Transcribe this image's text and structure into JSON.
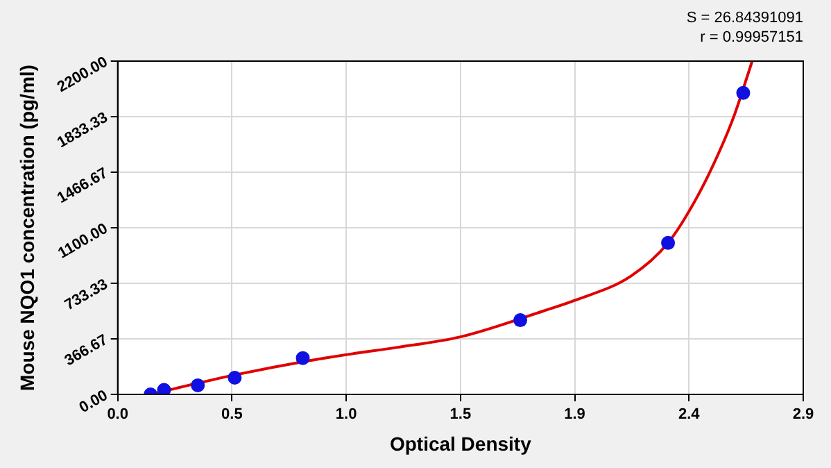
{
  "chart_data": {
    "type": "scatter",
    "xlabel": "Optical Density",
    "ylabel": "Mouse NQO1 concentration (pg/ml)",
    "annotations": [
      "S = 26.84391091",
      "r = 0.99957151"
    ],
    "xlim": [
      0,
      2.9
    ],
    "xticks": [
      {
        "value": 0,
        "label": "0.0"
      },
      {
        "value": 0.4833,
        "label": "0.5"
      },
      {
        "value": 0.9667,
        "label": "1.0"
      },
      {
        "value": 1.45,
        "label": "1.5"
      },
      {
        "value": 1.9333,
        "label": "1.9"
      },
      {
        "value": 2.4167,
        "label": "2.4"
      },
      2.9
    ],
    "ylim": [
      0,
      2200
    ],
    "yticks": [
      {
        "value": 0,
        "label": "0.00"
      },
      {
        "value": 366.67,
        "label": "366.67"
      },
      {
        "value": 733.33,
        "label": "733.33"
      },
      {
        "value": 1100,
        "label": "1100.00"
      },
      {
        "value": 1466.67,
        "label": "1466.67"
      },
      {
        "value": 1833.33,
        "label": "1833.33"
      },
      {
        "value": 2200,
        "label": "2200.00"
      }
    ],
    "grid": true,
    "marker": "circle",
    "series": [
      {
        "type": "line",
        "color": "#e00000",
        "marker": "none",
        "x": [
          0.139,
          0.3,
          0.5,
          0.8,
          1.0,
          1.18,
          1.45,
          1.8,
          1.933,
          2.17,
          2.328,
          2.45,
          2.55,
          2.61,
          2.684
        ],
        "values": [
          0,
          60,
          130,
          220,
          270,
          310,
          380,
          550,
          620,
          780,
          1000,
          1300,
          1620,
          1850,
          2200
        ]
      },
      {
        "color": "#1010e0",
        "x": [
          0.139,
          0.196,
          0.339,
          0.495,
          0.783,
          1.703,
          2.328,
          2.646
        ],
        "values": [
          0,
          30,
          60,
          110,
          240,
          490,
          1000,
          1990
        ]
      }
    ]
  }
}
